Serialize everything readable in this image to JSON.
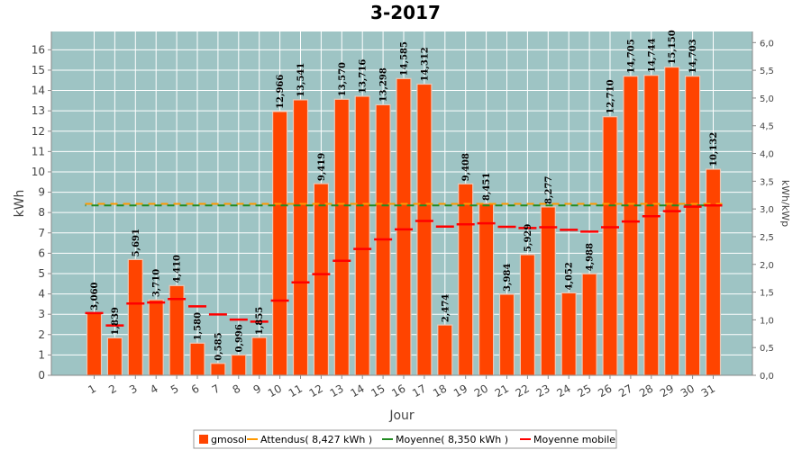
{
  "chart_data": {
    "type": "bar",
    "title": "3-2017",
    "xlabel": "Jour",
    "ylabel": "kWh",
    "y2label": "kWh/kWp",
    "ylim": [
      0,
      16.9
    ],
    "y2lim": [
      0,
      6.2
    ],
    "yticks": [
      "0",
      "1",
      "2",
      "3",
      "4",
      "5",
      "6",
      "7",
      "8",
      "9",
      "10",
      "11",
      "12",
      "13",
      "14",
      "15",
      "16"
    ],
    "y2ticks": [
      "0,0",
      "0,5",
      "1,0",
      "1,5",
      "2,0",
      "2,5",
      "3,0",
      "3,5",
      "4,0",
      "4,5",
      "5,0",
      "5,5",
      "6,0"
    ],
    "categories": [
      "1",
      "2",
      "3",
      "4",
      "5",
      "6",
      "7",
      "8",
      "9",
      "10",
      "11",
      "12",
      "13",
      "14",
      "15",
      "16",
      "17",
      "18",
      "19",
      "20",
      "21",
      "22",
      "23",
      "24",
      "25",
      "26",
      "27",
      "28",
      "29",
      "30",
      "31"
    ],
    "series": [
      {
        "name": "gmosol",
        "values": [
          3.06,
          1.839,
          5.691,
          3.71,
          4.41,
          1.58,
          0.585,
          0.996,
          1.855,
          12.966,
          13.541,
          9.419,
          13.57,
          13.716,
          13.298,
          14.585,
          14.312,
          2.474,
          9.408,
          8.451,
          3.984,
          5.929,
          8.277,
          4.052,
          4.988,
          12.71,
          14.705,
          14.744,
          15.15,
          14.703,
          10.132
        ],
        "labels": [
          "3,060",
          "1,839",
          "5,691",
          "3,710",
          "4,410",
          "1,580",
          "0,585",
          "0,996",
          "1,855",
          "12,966",
          "13,541",
          "9,419",
          "13,570",
          "13,716",
          "13,298",
          "14,585",
          "14,312",
          "2,474",
          "9,408",
          "8,451",
          "3,984",
          "5,929",
          "8,277",
          "4,052",
          "4,988",
          "12,710",
          "14,705",
          "14,744",
          "15,150",
          "14,703",
          "10,132"
        ]
      },
      {
        "name": "Attendus( 8,427 kWh )",
        "value": 8.427
      },
      {
        "name": "Moyenne( 8,350 kWh )",
        "value": 8.35
      },
      {
        "name": "Moyenne mobile",
        "values": [
          3.06,
          2.45,
          3.53,
          3.58,
          3.75,
          3.39,
          2.99,
          2.74,
          2.64,
          3.67,
          4.57,
          4.97,
          5.63,
          6.21,
          6.68,
          7.17,
          7.59,
          7.31,
          7.42,
          7.47,
          7.3,
          7.24,
          7.28,
          7.15,
          7.06,
          7.28,
          7.56,
          7.82,
          8.07,
          8.29,
          8.35
        ]
      }
    ],
    "colors": {
      "bar": "#ff4400",
      "bar_edge": "#e8c8b8",
      "plot_bg": "#9ec4c4",
      "grid": "#ffffff",
      "attendus": "#ff9900",
      "moyenne": "#228b22",
      "moyenne_mobile": "#ff0000"
    },
    "legend_position": "bottom",
    "grid": true
  }
}
